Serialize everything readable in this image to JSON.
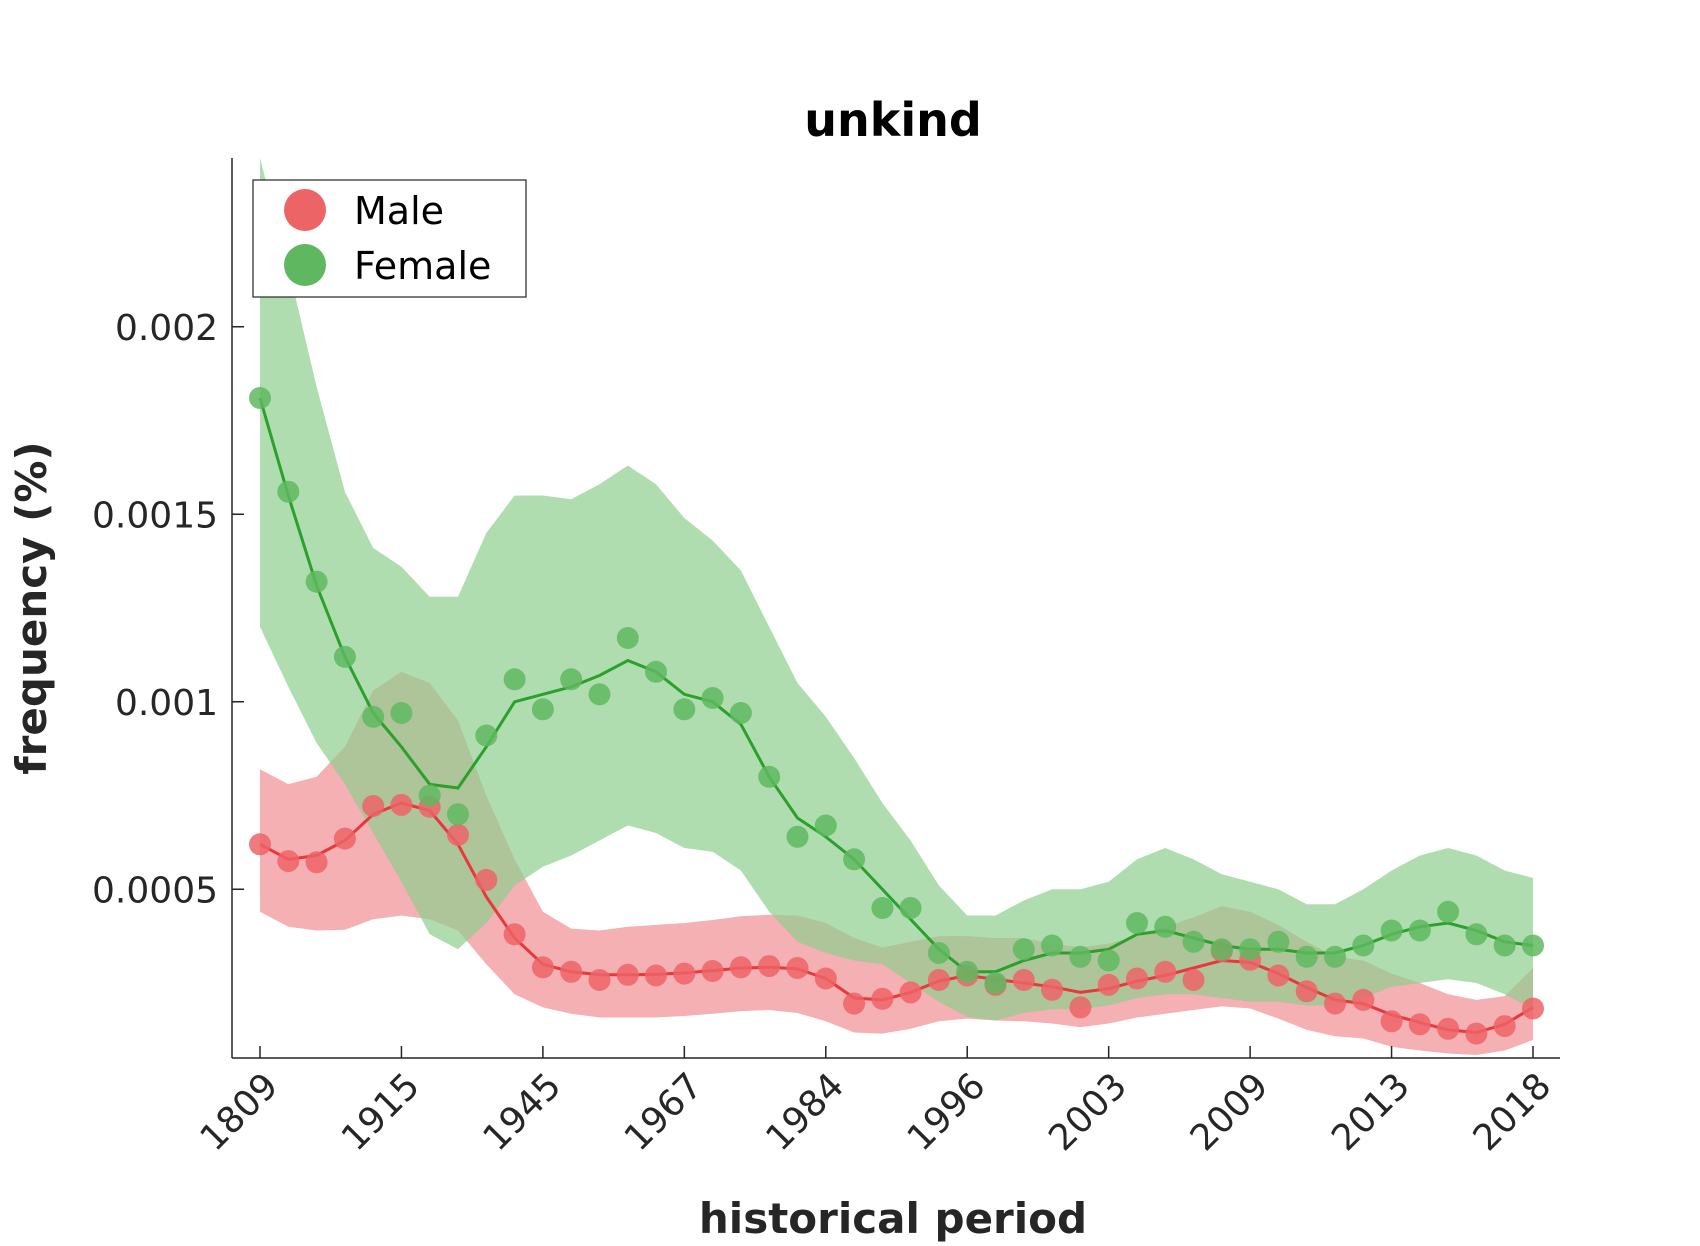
{
  "chart_data": {
    "type": "line",
    "title": "unkind",
    "xlabel": "historical period",
    "ylabel": "frequency (%)",
    "x_tick_labels": [
      "1809",
      "1915",
      "1945",
      "1967",
      "1984",
      "1996",
      "2003",
      "2009",
      "2013",
      "2018"
    ],
    "y_ticks": [
      {
        "value": 0.0005,
        "label": "0.0005"
      },
      {
        "value": 0.001,
        "label": "0.001"
      },
      {
        "value": 0.0015,
        "label": "0.0015"
      },
      {
        "value": 0.002,
        "label": "0.002"
      }
    ],
    "ylim": [
      5e-05,
      0.00245
    ],
    "x_index_range": [
      0,
      45
    ],
    "grid": false,
    "legend_placement": "top-left",
    "series": [
      {
        "name": "Male",
        "color": "#e8383b",
        "marker_color": "#ed6467",
        "band_color": "#f08f91",
        "points": [
          0.00062,
          0.000575,
          0.000572,
          0.000635,
          0.000722,
          0.000725,
          0.00072,
          0.000645,
          0.000525,
          0.00038,
          0.000292,
          0.00028,
          0.000258,
          0.000272,
          0.00027,
          0.000275,
          0.000282,
          0.000292,
          0.000295,
          0.00029,
          0.000262,
          0.000195,
          0.000208,
          0.000225,
          0.000258,
          0.00027,
          0.000245,
          0.000258,
          0.000232,
          0.000185,
          0.000245,
          0.000262,
          0.00028,
          0.000258,
          0.000335,
          0.000312,
          0.00027,
          0.000228,
          0.000195,
          0.000205,
          0.000148,
          0.00014,
          0.000128,
          0.000115,
          0.000135,
          0.000182
        ],
        "smoothed": [
          0.00062,
          0.00058,
          0.00059,
          0.00063,
          0.0007,
          0.00073,
          0.00071,
          0.00062,
          0.00048,
          0.00037,
          0.0003,
          0.00028,
          0.000272,
          0.000272,
          0.000273,
          0.000277,
          0.000283,
          0.00029,
          0.000292,
          0.000288,
          0.000262,
          0.00021,
          0.000205,
          0.000225,
          0.000255,
          0.00027,
          0.00026,
          0.00025,
          0.00024,
          0.000225,
          0.000235,
          0.000255,
          0.00027,
          0.00029,
          0.00031,
          0.000305,
          0.000275,
          0.000238,
          0.000205,
          0.000195,
          0.000165,
          0.000145,
          0.000125,
          0.000118,
          0.00014,
          0.000185
        ],
        "band_upper": [
          0.00082,
          0.00078,
          0.0008,
          0.00088,
          0.00103,
          0.00108,
          0.00105,
          0.00095,
          0.00075,
          0.00058,
          0.00044,
          0.000395,
          0.00039,
          0.0004,
          0.000405,
          0.00041,
          0.000418,
          0.000428,
          0.000432,
          0.00043,
          0.00041,
          0.00037,
          0.000345,
          0.00036,
          0.000375,
          0.000375,
          0.00037,
          0.00037,
          0.000355,
          0.000345,
          0.000355,
          0.000375,
          0.0004,
          0.000425,
          0.000455,
          0.00044,
          0.000405,
          0.00036,
          0.00032,
          0.00031,
          0.000275,
          0.00025,
          0.00022,
          0.000205,
          0.000215,
          0.00029
        ],
        "band_lower": [
          0.00044,
          0.0004,
          0.00039,
          0.000392,
          0.00042,
          0.00043,
          0.00042,
          0.00039,
          0.0003,
          0.00022,
          0.000185,
          0.000168,
          0.000158,
          0.000158,
          0.000158,
          0.000162,
          0.000168,
          0.000175,
          0.000178,
          0.00017,
          0.000148,
          0.000118,
          0.000115,
          0.000128,
          0.000148,
          0.000155,
          0.00015,
          0.000148,
          0.000142,
          0.000132,
          0.000142,
          0.000158,
          0.000168,
          0.000178,
          0.000188,
          0.000182,
          0.000155,
          0.000125,
          0.000108,
          0.000102,
          8e-05,
          7e-05,
          6.2e-05,
          5.8e-05,
          7e-05,
          9.8e-05
        ]
      },
      {
        "name": "Female",
        "color": "#2ca02c",
        "marker_color": "#5fb85f",
        "band_color": "#8fce8f",
        "points": [
          0.00181,
          0.00156,
          0.00132,
          0.00112,
          0.00096,
          0.00097,
          0.00075,
          0.0007,
          0.00091,
          0.00106,
          0.00098,
          0.00106,
          0.00102,
          0.00117,
          0.00108,
          0.00098,
          0.00101,
          0.00097,
          0.0008,
          0.00064,
          0.00067,
          0.00058,
          0.00045,
          0.00045,
          0.00033,
          0.00028,
          0.00025,
          0.00034,
          0.00035,
          0.00032,
          0.00031,
          0.00041,
          0.0004,
          0.00036,
          0.00034,
          0.00034,
          0.00036,
          0.00032,
          0.00032,
          0.00035,
          0.00039,
          0.00039,
          0.00044,
          0.00038,
          0.00035,
          0.00035
        ],
        "smoothed": [
          0.00181,
          0.00155,
          0.00131,
          0.00112,
          0.00097,
          0.00088,
          0.00078,
          0.00077,
          0.00088,
          0.001,
          0.00102,
          0.00104,
          0.00107,
          0.00111,
          0.00108,
          0.00102,
          0.001,
          0.00094,
          0.0008,
          0.00069,
          0.00064,
          0.00058,
          0.0005,
          0.00042,
          0.00034,
          0.00028,
          0.00028,
          0.00031,
          0.00033,
          0.00033,
          0.00034,
          0.00038,
          0.00039,
          0.00037,
          0.00035,
          0.00034,
          0.00034,
          0.00033,
          0.00033,
          0.00035,
          0.00038,
          0.0004,
          0.00041,
          0.00039,
          0.00036,
          0.00035
        ],
        "band_upper": [
          0.00247,
          0.00216,
          0.00184,
          0.00156,
          0.00141,
          0.00136,
          0.00128,
          0.00128,
          0.00145,
          0.00155,
          0.00155,
          0.00154,
          0.00158,
          0.00163,
          0.00158,
          0.00149,
          0.00143,
          0.00135,
          0.0012,
          0.00105,
          0.00096,
          0.00085,
          0.00073,
          0.00063,
          0.00051,
          0.00043,
          0.00043,
          0.00047,
          0.0005,
          0.0005,
          0.00052,
          0.00058,
          0.00061,
          0.00058,
          0.00054,
          0.00052,
          0.0005,
          0.00046,
          0.00046,
          0.0005,
          0.00055,
          0.00059,
          0.00061,
          0.00059,
          0.00055,
          0.00053
        ],
        "band_lower": [
          0.0012,
          0.00104,
          0.00089,
          0.00078,
          0.00065,
          0.00052,
          0.00038,
          0.00034,
          0.00041,
          0.00051,
          0.00056,
          0.00059,
          0.00063,
          0.00067,
          0.00065,
          0.00061,
          0.0006,
          0.00055,
          0.00044,
          0.00036,
          0.00033,
          0.00031,
          0.0003,
          0.00025,
          0.0002,
          0.00016,
          0.00015,
          0.00017,
          0.00018,
          0.00018,
          0.00019,
          0.00021,
          0.00022,
          0.00022,
          0.00021,
          0.0002,
          0.0002,
          0.00019,
          0.00019,
          0.00021,
          0.00024,
          0.00025,
          0.00026,
          0.00025,
          0.00022,
          0.00018
        ]
      }
    ]
  }
}
